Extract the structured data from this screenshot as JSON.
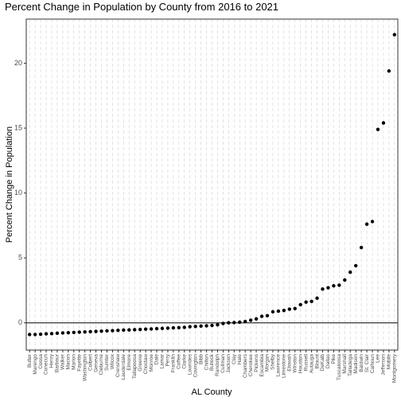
{
  "chart_data": {
    "type": "scatter",
    "title": "Percent Change in Population by County from 2016 to 2021",
    "x_label": "AL County",
    "y_label": "Percent Change in Population",
    "categories": [
      "Butler",
      "Marengo",
      "Coosa",
      "Conecuh",
      "Henry",
      "Barbour",
      "Walker",
      "Macon",
      "Marion",
      "Fayette",
      "Washington",
      "Colbert",
      "Geneva",
      "Cleburne",
      "Sumter",
      "Wilcox",
      "Crenshaw",
      "Lauderdale",
      "Elmore",
      "Tallapoosa",
      "Greene",
      "Choctaw",
      "Monroe",
      "Dale",
      "Lamar",
      "Perry",
      "Franklin",
      "Coffee",
      "Clarke",
      "Lowndes",
      "Covington",
      "Bibb",
      "Chilton",
      "Bullock",
      "Randolph",
      "Cullman",
      "Jackson",
      "Clay",
      "Hale",
      "Chambers",
      "Cherokee",
      "Pickens",
      "Escambia",
      "Morgan",
      "Shelby",
      "Lawrence",
      "Limestone",
      "Etowah",
      "Winston",
      "Houston",
      "Russell",
      "Autauga",
      "Blount",
      "DeKalb",
      "Dallas",
      "Pike",
      "Tuscaloosa",
      "Marshall",
      "Talladega",
      "Madison",
      "Baldwin",
      "St. Clair",
      "Calhoun",
      "Lee",
      "Jefferson",
      "Mobile",
      "Montgomery"
    ],
    "values": [
      -0.9,
      -0.9,
      -0.88,
      -0.85,
      -0.83,
      -0.8,
      -0.78,
      -0.76,
      -0.74,
      -0.72,
      -0.7,
      -0.68,
      -0.66,
      -0.64,
      -0.62,
      -0.6,
      -0.58,
      -0.56,
      -0.55,
      -0.53,
      -0.51,
      -0.49,
      -0.47,
      -0.45,
      -0.43,
      -0.41,
      -0.39,
      -0.37,
      -0.35,
      -0.3,
      -0.28,
      -0.25,
      -0.23,
      -0.2,
      -0.15,
      -0.05,
      0,
      0.02,
      0.05,
      0.1,
      0.2,
      0.3,
      0.5,
      0.55,
      0.85,
      0.9,
      0.95,
      1.05,
      1.1,
      1.4,
      1.6,
      1.65,
      1.9,
      2.6,
      2.7,
      2.85,
      2.9,
      3.3,
      3.9,
      4.4,
      5.8,
      7.6,
      7.8,
      14.9,
      15.4,
      19.4,
      22.2
    ],
    "color": "#000000",
    "ylim": [
      -2.1,
      23.4
    ],
    "yticks": [
      0,
      5,
      10,
      15,
      20
    ],
    "hline": 0,
    "grid": true
  }
}
